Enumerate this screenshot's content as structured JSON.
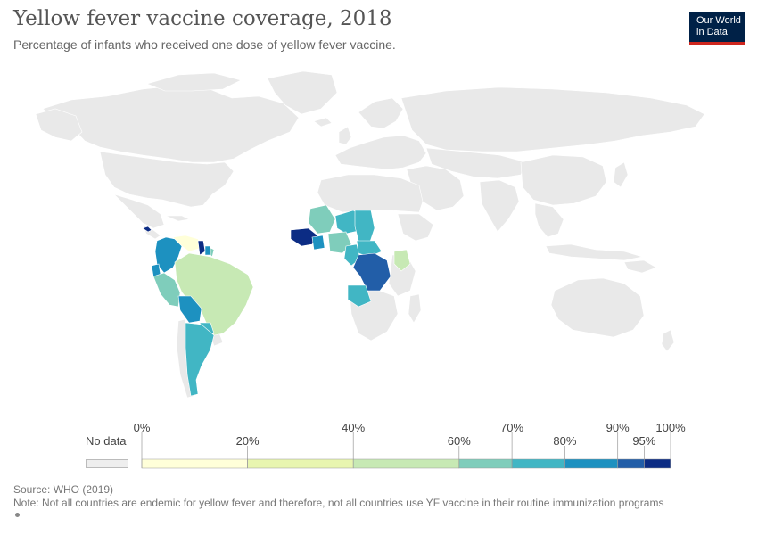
{
  "header": {
    "title": "Yellow fever vaccine coverage, 2018",
    "subtitle": "Percentage of infants who received one dose of yellow fever vaccine."
  },
  "logo": {
    "line1": "Our World",
    "line2": "in Data"
  },
  "legend": {
    "nodata_label": "No data",
    "nodata_color": "#eeeeee",
    "bins": [
      {
        "from": 0,
        "to": 20,
        "color": "#ffffd9"
      },
      {
        "from": 20,
        "to": 40,
        "color": "#e8f5b0"
      },
      {
        "from": 40,
        "to": 60,
        "color": "#c7e9b4"
      },
      {
        "from": 60,
        "to": 70,
        "color": "#7fcdbb"
      },
      {
        "from": 70,
        "to": 80,
        "color": "#41b6c4"
      },
      {
        "from": 80,
        "to": 90,
        "color": "#1d91c0"
      },
      {
        "from": 90,
        "to": 95,
        "color": "#225ea8"
      },
      {
        "from": 95,
        "to": 100,
        "color": "#0c2c84"
      }
    ],
    "ticks": [
      {
        "value": 0,
        "label": "0%",
        "row": "top"
      },
      {
        "value": 20,
        "label": "20%",
        "row": "bottom"
      },
      {
        "value": 40,
        "label": "40%",
        "row": "top"
      },
      {
        "value": 60,
        "label": "60%",
        "row": "bottom"
      },
      {
        "value": 70,
        "label": "70%",
        "row": "top"
      },
      {
        "value": 80,
        "label": "80%",
        "row": "bottom"
      },
      {
        "value": 90,
        "label": "90%",
        "row": "top"
      },
      {
        "value": 95,
        "label": "95%",
        "row": "bottom"
      },
      {
        "value": 100,
        "label": "100%",
        "row": "top"
      }
    ]
  },
  "map": {
    "default_color": "#e9e9e9",
    "border_color": "#ffffff",
    "regions_with_data": [
      {
        "name": "Panama",
        "color": "#0c2c84"
      },
      {
        "name": "Colombia",
        "color": "#1d91c0"
      },
      {
        "name": "Venezuela",
        "color": "#ffffd9"
      },
      {
        "name": "Guyana",
        "color": "#0c2c84"
      },
      {
        "name": "Suriname",
        "color": "#1d91c0"
      },
      {
        "name": "French Guiana",
        "color": "#7fcdbb"
      },
      {
        "name": "Ecuador",
        "color": "#1d91c0"
      },
      {
        "name": "Peru",
        "color": "#7fcdbb"
      },
      {
        "name": "Brazil",
        "color": "#c7e9b4"
      },
      {
        "name": "Bolivia",
        "color": "#1d91c0"
      },
      {
        "name": "Paraguay",
        "color": "#41b6c4"
      },
      {
        "name": "Argentina",
        "color": "#41b6c4"
      },
      {
        "name": "Mali",
        "color": "#7fcdbb"
      },
      {
        "name": "Niger",
        "color": "#41b6c4"
      },
      {
        "name": "Chad",
        "color": "#41b6c4"
      },
      {
        "name": "Nigeria",
        "color": "#7fcdbb"
      },
      {
        "name": "Ghana",
        "color": "#1d91c0"
      },
      {
        "name": "Cameroon",
        "color": "#41b6c4"
      },
      {
        "name": "Central African Republic",
        "color": "#41b6c4"
      },
      {
        "name": "DR Congo",
        "color": "#225ea8"
      },
      {
        "name": "Angola",
        "color": "#41b6c4"
      },
      {
        "name": "Kenya",
        "color": "#c7e9b4"
      }
    ]
  },
  "footer": {
    "source": "Source: WHO (2019)",
    "note": "Note: Not all countries are endemic for yellow fever and therefore, not all countries use YF vaccine in their routine immunization programs"
  }
}
